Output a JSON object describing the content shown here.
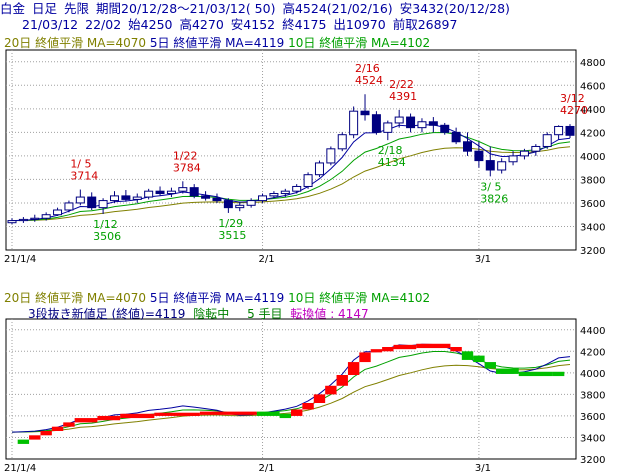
{
  "header": {
    "line1": [
      "白金",
      "日足",
      "先限",
      "期間20/12/28～21/03/12( 50)",
      "高4524(21/02/16)",
      "安3432(20/12/28)"
    ],
    "line2": [
      "21/03/12",
      "22/02",
      "始4250",
      "高4270",
      "安4152",
      "終4175",
      "出10970",
      "前取26897"
    ]
  },
  "top_panel": {
    "legend": [
      {
        "label": "20日 終値平滑 MA=4070",
        "color": "#808000"
      },
      {
        "label": "5日 終値平滑 MA=4119",
        "color": "#0000a0"
      },
      {
        "label": "10日 終値平滑 MA=4102",
        "color": "#00a000"
      }
    ]
  },
  "bottom_panel": {
    "legend": [
      {
        "label": "20日 終値平滑 MA=4070",
        "color": "#808000"
      },
      {
        "label": "5日 終値平滑 MA=4119",
        "color": "#0000a0"
      },
      {
        "label": "10日 終値平滑 MA=4102",
        "color": "#00a000"
      }
    ],
    "info": {
      "text": "3段抜き新値足 (終値)=4119",
      "signal": "陰転中",
      "count": "5 手目",
      "reversal": "転換値 : 4147",
      "text_color": "#000080",
      "signal_color": "#008000",
      "reversal_color": "#c000c0"
    }
  },
  "chart_data": [
    {
      "type": "candlestick",
      "title": "白金 日足 先限",
      "ylim": [
        3200,
        4900
      ],
      "yticks": [
        3200,
        3400,
        3600,
        3800,
        4000,
        4200,
        4400,
        4600,
        4800
      ],
      "xticks": [
        {
          "i": 0,
          "label": "21/1/4"
        },
        {
          "i": 22,
          "label": "2/1"
        },
        {
          "i": 41,
          "label": "3/1"
        }
      ],
      "ohlc": [
        [
          3432,
          3470,
          3420,
          3450
        ],
        [
          3450,
          3480,
          3430,
          3460
        ],
        [
          3460,
          3500,
          3440,
          3470
        ],
        [
          3470,
          3520,
          3450,
          3500
        ],
        [
          3500,
          3560,
          3490,
          3540
        ],
        [
          3540,
          3620,
          3520,
          3600
        ],
        [
          3600,
          3714,
          3580,
          3650
        ],
        [
          3650,
          3690,
          3540,
          3560
        ],
        [
          3560,
          3640,
          3506,
          3620
        ],
        [
          3620,
          3700,
          3600,
          3660
        ],
        [
          3660,
          3710,
          3610,
          3630
        ],
        [
          3630,
          3680,
          3600,
          3650
        ],
        [
          3650,
          3720,
          3630,
          3700
        ],
        [
          3700,
          3740,
          3660,
          3680
        ],
        [
          3680,
          3730,
          3650,
          3700
        ],
        [
          3700,
          3784,
          3680,
          3730
        ],
        [
          3730,
          3760,
          3640,
          3660
        ],
        [
          3660,
          3700,
          3620,
          3640
        ],
        [
          3640,
          3680,
          3600,
          3620
        ],
        [
          3620,
          3640,
          3515,
          3560
        ],
        [
          3560,
          3610,
          3530,
          3580
        ],
        [
          3580,
          3640,
          3560,
          3620
        ],
        [
          3620,
          3680,
          3600,
          3660
        ],
        [
          3660,
          3700,
          3640,
          3680
        ],
        [
          3680,
          3720,
          3650,
          3700
        ],
        [
          3700,
          3760,
          3680,
          3740
        ],
        [
          3740,
          3860,
          3720,
          3840
        ],
        [
          3840,
          3960,
          3820,
          3940
        ],
        [
          3940,
          4080,
          3920,
          4060
        ],
        [
          4060,
          4200,
          4040,
          4180
        ],
        [
          4180,
          4420,
          4150,
          4380
        ],
        [
          4380,
          4524,
          4300,
          4350
        ],
        [
          4350,
          4380,
          4180,
          4200
        ],
        [
          4200,
          4300,
          4134,
          4280
        ],
        [
          4280,
          4391,
          4240,
          4330
        ],
        [
          4330,
          4360,
          4200,
          4240
        ],
        [
          4240,
          4320,
          4200,
          4290
        ],
        [
          4290,
          4330,
          4200,
          4260
        ],
        [
          4260,
          4280,
          4180,
          4200
        ],
        [
          4200,
          4240,
          4100,
          4120
        ],
        [
          4120,
          4200,
          4000,
          4040
        ],
        [
          4040,
          4120,
          3900,
          3960
        ],
        [
          3960,
          4080,
          3826,
          3880
        ],
        [
          3880,
          3980,
          3850,
          3950
        ],
        [
          3950,
          4040,
          3920,
          4000
        ],
        [
          4000,
          4060,
          3970,
          4040
        ],
        [
          4040,
          4100,
          4000,
          4080
        ],
        [
          4080,
          4200,
          4060,
          4180
        ],
        [
          4180,
          4260,
          4140,
          4250
        ],
        [
          4250,
          4270,
          4152,
          4175
        ]
      ],
      "annotations": [
        {
          "i": 6,
          "date": "1/ 5",
          "value": "3714",
          "kind": "high"
        },
        {
          "i": 8,
          "date": "1/12",
          "value": "3506",
          "kind": "low"
        },
        {
          "i": 15,
          "date": "1/22",
          "value": "3784",
          "kind": "high"
        },
        {
          "i": 19,
          "date": "1/29",
          "value": "3515",
          "kind": "low"
        },
        {
          "i": 31,
          "date": "2/16",
          "value": "4524",
          "kind": "high"
        },
        {
          "i": 33,
          "date": "2/18",
          "value": "4134",
          "kind": "low"
        },
        {
          "i": 34,
          "date": "2/22",
          "value": "4391",
          "kind": "high"
        },
        {
          "i": 42,
          "date": "3/ 5",
          "value": "3826",
          "kind": "low"
        },
        {
          "i": 49,
          "date": "3/12",
          "value": "4270",
          "kind": "high"
        }
      ]
    },
    {
      "type": "bar",
      "title": "3段抜き新値足 (終値)",
      "ylim": [
        3200,
        4500
      ],
      "yticks": [
        3200,
        3400,
        3600,
        3800,
        4000,
        4200,
        4400
      ],
      "xticks": [
        {
          "i": 0,
          "label": "21/1/4"
        },
        {
          "i": 22,
          "label": "2/1"
        },
        {
          "i": 41,
          "label": "3/1"
        }
      ],
      "bricks": [
        {
          "i": 1,
          "lo": 3340,
          "hi": 3380,
          "dir": "down"
        },
        {
          "i": 2,
          "lo": 3380,
          "hi": 3420,
          "dir": "up"
        },
        {
          "i": 3,
          "lo": 3420,
          "hi": 3460,
          "dir": "up"
        },
        {
          "i": 4,
          "lo": 3460,
          "hi": 3500,
          "dir": "up"
        },
        {
          "i": 5,
          "lo": 3500,
          "hi": 3540,
          "dir": "up"
        },
        {
          "i": 6,
          "lo": 3540,
          "hi": 3580,
          "dir": "up"
        },
        {
          "i": 8,
          "lo": 3560,
          "hi": 3600,
          "dir": "up"
        },
        {
          "i": 10,
          "lo": 3580,
          "hi": 3620,
          "dir": "up"
        },
        {
          "i": 13,
          "lo": 3600,
          "hi": 3630,
          "dir": "up"
        },
        {
          "i": 17,
          "lo": 3610,
          "hi": 3640,
          "dir": "up"
        },
        {
          "i": 22,
          "lo": 3600,
          "hi": 3640,
          "dir": "down"
        },
        {
          "i": 24,
          "lo": 3580,
          "hi": 3620,
          "dir": "down"
        },
        {
          "i": 25,
          "lo": 3600,
          "hi": 3660,
          "dir": "up"
        },
        {
          "i": 26,
          "lo": 3660,
          "hi": 3720,
          "dir": "up"
        },
        {
          "i": 27,
          "lo": 3720,
          "hi": 3800,
          "dir": "up"
        },
        {
          "i": 28,
          "lo": 3800,
          "hi": 3880,
          "dir": "up"
        },
        {
          "i": 29,
          "lo": 3880,
          "hi": 3980,
          "dir": "up"
        },
        {
          "i": 30,
          "lo": 3980,
          "hi": 4100,
          "dir": "up"
        },
        {
          "i": 31,
          "lo": 4100,
          "hi": 4190,
          "dir": "up"
        },
        {
          "i": 32,
          "lo": 4190,
          "hi": 4220,
          "dir": "up"
        },
        {
          "i": 33,
          "lo": 4200,
          "hi": 4240,
          "dir": "up"
        },
        {
          "i": 34,
          "lo": 4220,
          "hi": 4260,
          "dir": "up"
        },
        {
          "i": 36,
          "lo": 4230,
          "hi": 4270,
          "dir": "up"
        },
        {
          "i": 39,
          "lo": 4200,
          "hi": 4240,
          "dir": "up"
        },
        {
          "i": 40,
          "lo": 4120,
          "hi": 4200,
          "dir": "down"
        },
        {
          "i": 41,
          "lo": 4100,
          "hi": 4160,
          "dir": "down"
        },
        {
          "i": 42,
          "lo": 4040,
          "hi": 4100,
          "dir": "down"
        },
        {
          "i": 43,
          "lo": 3990,
          "hi": 4040,
          "dir": "down"
        },
        {
          "i": 45,
          "lo": 3970,
          "hi": 4010,
          "dir": "down"
        },
        {
          "i": 48,
          "lo": 3970,
          "hi": 4010,
          "dir": "down"
        }
      ]
    }
  ]
}
